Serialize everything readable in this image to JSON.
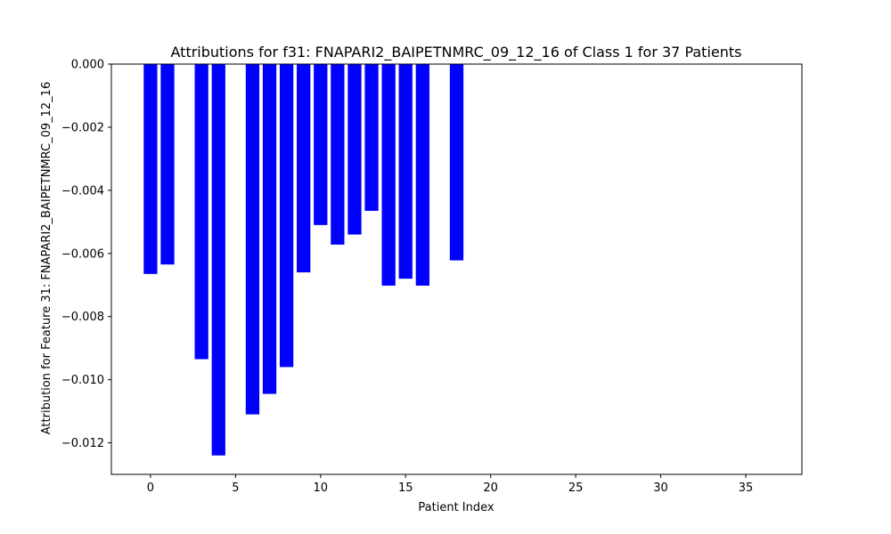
{
  "chart_data": {
    "type": "bar",
    "title": "Attributions for f31: FNAPARI2_BAIPETNMRC_09_12_16 of Class 1 for 37 Patients",
    "xlabel": "Patient Index",
    "ylabel": "Attribution for Feature 31: FNAPARI2_BAIPETNMRC_09_12_16",
    "xlim": [
      -2.3,
      38.3
    ],
    "ylim": [
      -0.013,
      0.0
    ],
    "x_ticks": [
      0,
      5,
      10,
      15,
      20,
      25,
      30,
      35
    ],
    "x_tick_labels": [
      "0",
      "5",
      "10",
      "15",
      "20",
      "25",
      "30",
      "35"
    ],
    "y_ticks": [
      0.0,
      -0.002,
      -0.004,
      -0.006,
      -0.008,
      -0.01,
      -0.012
    ],
    "y_tick_labels": [
      "0.000",
      "−0.002",
      "−0.004",
      "−0.006",
      "−0.008",
      "−0.010",
      "−0.012"
    ],
    "bar_color": "#0000ff",
    "grid": false,
    "x": [
      0,
      1,
      2,
      3,
      4,
      5,
      6,
      7,
      8,
      9,
      10,
      11,
      12,
      13,
      14,
      15,
      16,
      17,
      18,
      19,
      20,
      21,
      22,
      23,
      24,
      25,
      26,
      27,
      28,
      29,
      30,
      31,
      32,
      33,
      34,
      35,
      36
    ],
    "values": [
      -0.00665,
      -0.00635,
      0,
      -0.00935,
      -0.0124,
      0,
      -0.0111,
      -0.01045,
      -0.0096,
      -0.0066,
      -0.0051,
      -0.00572,
      -0.0054,
      -0.00465,
      -0.00702,
      -0.0068,
      -0.00702,
      0,
      -0.00622,
      0,
      0,
      0,
      0,
      0,
      0,
      0,
      0,
      0,
      0,
      0,
      0,
      0,
      0,
      0,
      0,
      0,
      0
    ]
  }
}
